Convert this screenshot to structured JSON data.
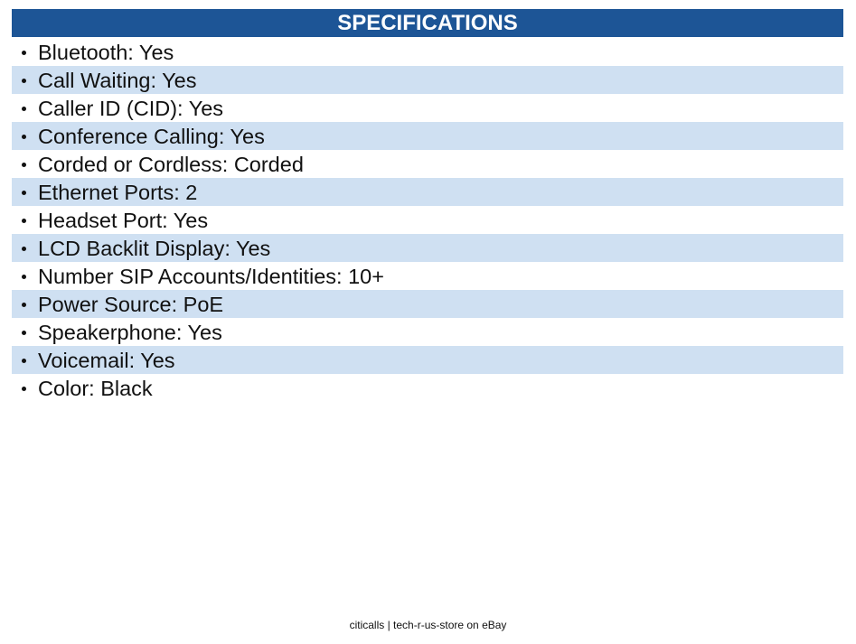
{
  "header": {
    "title": "SPECIFICATIONS"
  },
  "items": [
    "Bluetooth: Yes",
    "Call Waiting: Yes",
    "Caller ID (CID): Yes",
    "Conference Calling: Yes",
    "Corded or Cordless: Corded",
    "Ethernet Ports: 2",
    "Headset Port: Yes",
    "LCD Backlit Display: Yes",
    "Number SIP Accounts/Identities: 10+",
    "Power Source: PoE",
    "Speakerphone: Yes",
    "Voicemail: Yes",
    "Color: Black"
  ],
  "footer": "citicalls | tech-r-us-store on eBay"
}
